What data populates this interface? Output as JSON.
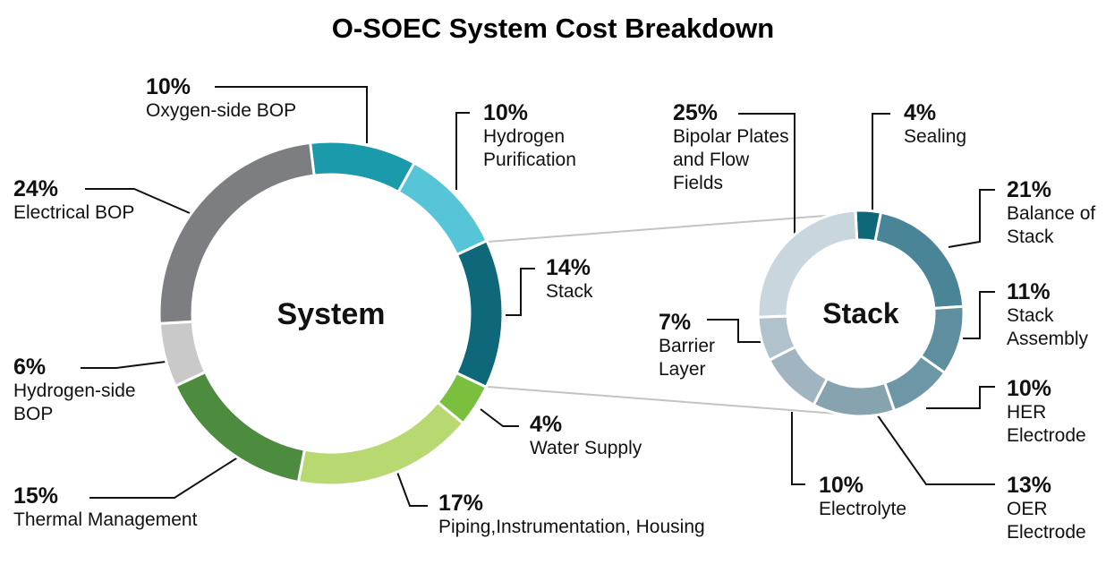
{
  "title": "O-SOEC System Cost Breakdown",
  "chart_data": [
    {
      "type": "donut",
      "center_label": "System",
      "categories": [
        "Oxygen-side BOP",
        "Hydrogen Purification",
        "Stack",
        "Water Supply",
        "Piping,Instrumentation, Housing",
        "Thermal Management",
        "Hydrogen-side BOP",
        "Electrical BOP"
      ],
      "values": [
        10,
        10,
        14,
        4,
        17,
        15,
        6,
        24
      ],
      "value_labels": [
        "10%",
        "10%",
        "14%",
        "4%",
        "17%",
        "15%",
        "6%",
        "24%"
      ],
      "colors": [
        "#1a9aab",
        "#56c5d8",
        "#0e687a",
        "#7abf3e",
        "#b8d872",
        "#4d8c3e",
        "#c9c9c9",
        "#7c7e82"
      ]
    },
    {
      "type": "donut",
      "center_label": "Stack",
      "categories": [
        "Sealing",
        "Balance of Stack",
        "Stack Assembly",
        "HER Electrode",
        "OER Electrode",
        "Electrolyte",
        "Barrier Layer",
        "Bipolar Plates and Flow Fields"
      ],
      "values": [
        4,
        21,
        11,
        10,
        13,
        10,
        7,
        25
      ],
      "value_labels": [
        "4%",
        "21%",
        "11%",
        "10%",
        "13%",
        "10%",
        "7%",
        "25%"
      ],
      "colors": [
        "#0e687a",
        "#4a8597",
        "#5f8e9e",
        "#6d97a6",
        "#87a3b0",
        "#a0b5bf",
        "#b0c3cc",
        "#cad6dd"
      ]
    }
  ]
}
